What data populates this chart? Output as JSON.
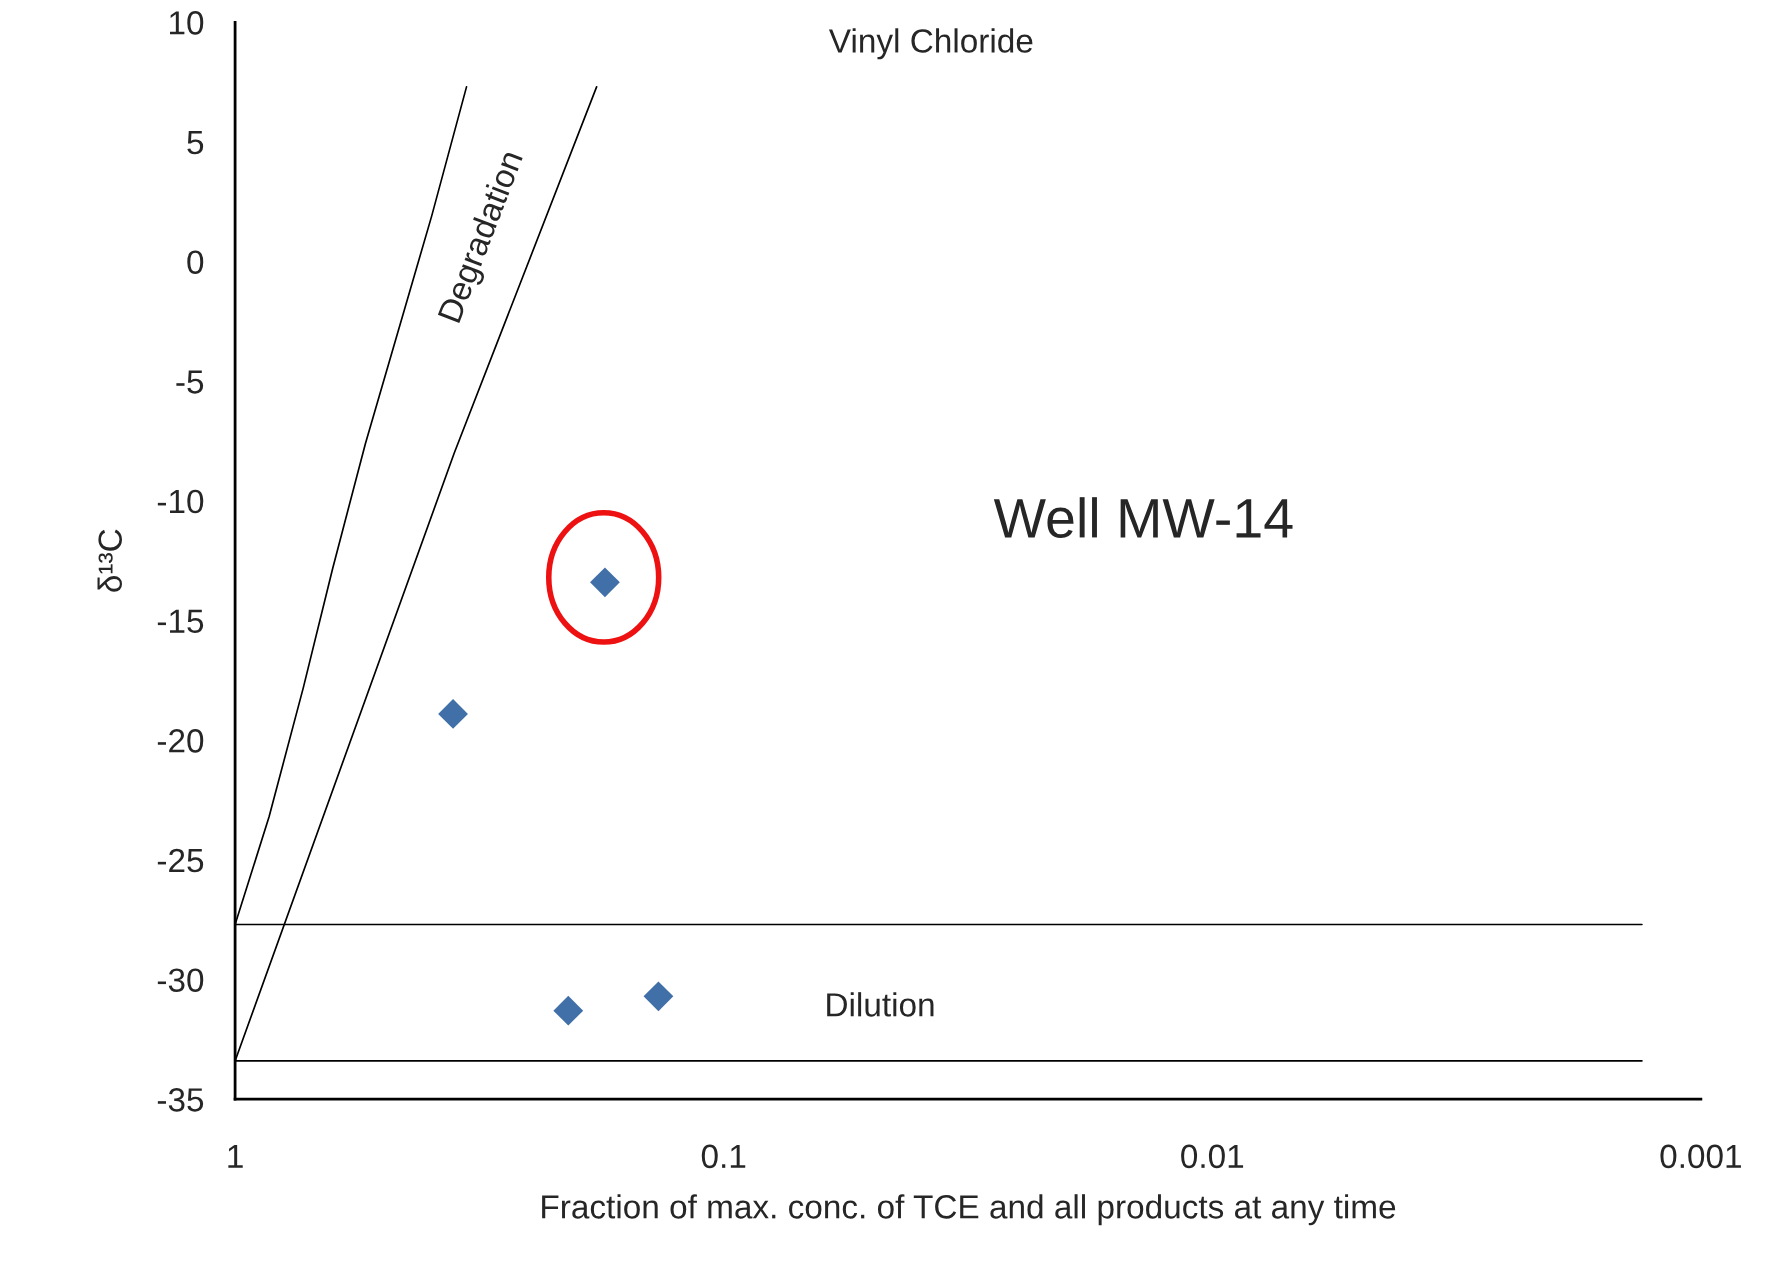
{
  "chart_data": {
    "type": "scatter",
    "title": "Vinyl Chloride",
    "xlabel": "Fraction of max. conc. of TCE and all products at any time",
    "ylabel": "δ¹³C",
    "log": "x",
    "xlim": [
      1,
      0.001
    ],
    "xticks": [
      1,
      0.1,
      0.01,
      0.001
    ],
    "ylim": [
      -35,
      10
    ],
    "yticks": [
      -35,
      -30,
      -25,
      -20,
      -15,
      -10,
      -5,
      0,
      5,
      10
    ],
    "grid": false,
    "legend": false,
    "series": [
      {
        "marker": "diamond",
        "color": "#4170a8",
        "x": [
          0.358,
          0.175,
          0.208,
          0.136
        ],
        "values": [
          -18.9,
          -13.4,
          -31.3,
          -30.7
        ]
      },
      {
        "type": "line",
        "color": "#000000",
        "x": [
          1,
          0.852,
          0.725,
          0.631,
          0.541,
          0.396,
          0.336
        ],
        "values": [
          -27.7,
          -23.2,
          -17.8,
          -12.8,
          -7.6,
          1.9,
          7.3
        ]
      },
      {
        "type": "line",
        "color": "#000000",
        "x": [
          1,
          0.356,
          0.182
        ],
        "values": [
          -33.4,
          -8.0,
          7.3
        ]
      },
      {
        "type": "line",
        "color": "#000000",
        "x": [
          1,
          0.00132
        ],
        "values": [
          -27.7,
          -27.7
        ]
      },
      {
        "type": "line",
        "color": "#000000",
        "x": [
          1,
          0.00132
        ],
        "values": [
          -33.4,
          -33.4
        ]
      }
    ],
    "annotations": [
      "Well MW-14",
      "Degradation",
      "Dilution"
    ]
  }
}
